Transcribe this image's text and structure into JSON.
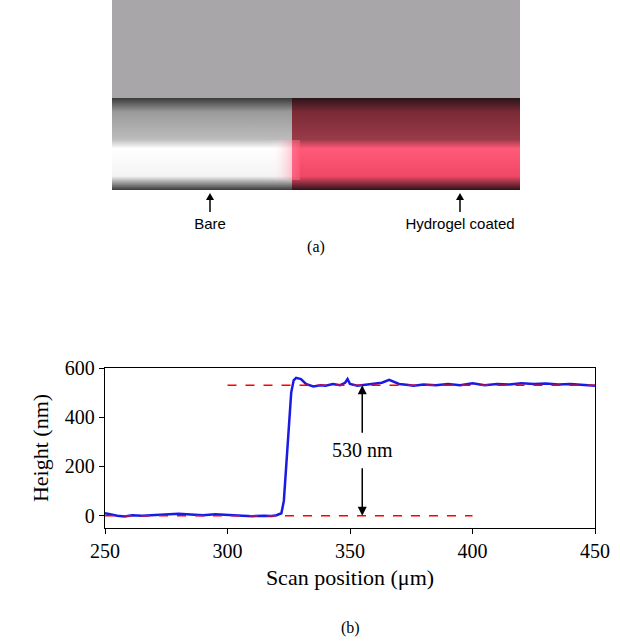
{
  "photo": {
    "labels": [
      "Bare",
      "Hydrogel coated"
    ],
    "panel_label": "(a)"
  },
  "chart_data": {
    "type": "line",
    "panel_label": "(b)",
    "x_label": "Scan position (μm)",
    "y_label": "Height (nm)",
    "xlim": [
      250,
      450
    ],
    "xticks": [
      250,
      300,
      350,
      400,
      450
    ],
    "ylim": [
      -50,
      600
    ],
    "yticks": [
      0,
      200,
      400,
      600
    ],
    "grid": false,
    "series": [
      {
        "color": "#1a1ae6",
        "x": [
          250,
          252,
          255,
          258,
          261,
          265,
          270,
          275,
          280,
          285,
          290,
          295,
          300,
          305,
          310,
          315,
          318,
          320,
          322,
          323,
          324,
          325,
          326,
          327,
          328,
          330,
          332,
          335,
          338,
          340,
          343,
          346,
          348,
          349,
          350,
          353,
          356,
          360,
          363,
          366,
          368,
          370,
          373,
          376,
          380,
          385,
          390,
          395,
          400,
          405,
          410,
          415,
          420,
          425,
          430,
          435,
          440,
          445,
          450
        ],
        "values": [
          10,
          5,
          0,
          -3,
          2,
          0,
          3,
          5,
          8,
          5,
          2,
          6,
          3,
          0,
          -2,
          0,
          -1,
          2,
          10,
          60,
          200,
          380,
          500,
          550,
          560,
          555,
          535,
          525,
          530,
          528,
          535,
          530,
          540,
          555,
          535,
          528,
          532,
          535,
          540,
          552,
          545,
          535,
          532,
          528,
          533,
          530,
          535,
          530,
          538,
          530,
          535,
          533,
          538,
          535,
          537,
          533,
          535,
          530,
          528
        ]
      }
    ],
    "reference_lines": [
      {
        "color": "#ff0000",
        "line_style": "dashed",
        "y": 530,
        "x": [
          300,
          450
        ]
      },
      {
        "color": "#ff0000",
        "line_style": "dashed",
        "y": 0,
        "x": [
          250,
          400
        ]
      }
    ],
    "annotations": [
      {
        "text": "530 nm",
        "x": 355,
        "y": 265,
        "span": [
          0,
          530
        ]
      }
    ]
  }
}
